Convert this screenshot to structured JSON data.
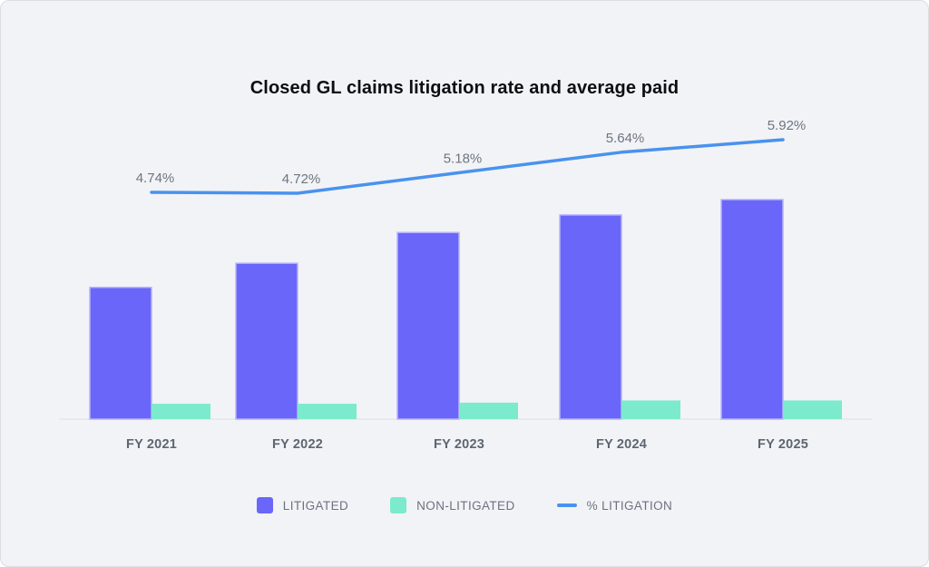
{
  "title": "Closed GL claims litigation rate and average paid",
  "legend": [
    {
      "label": "LITIGATED",
      "color": "#6A66FA",
      "marker": "square"
    },
    {
      "label": "NON-LITIGATED",
      "color": "#7CEACD",
      "marker": "square"
    },
    {
      "label": "% LITIGATION",
      "color": "#4992EE",
      "marker": "line-dash"
    }
  ],
  "chart_data": {
    "type": "bar",
    "overlay": "line",
    "title": "Closed GL claims litigation rate and average paid",
    "categories": [
      "FY 2021",
      "FY 2022",
      "FY 2023",
      "FY 2024",
      "FY 2025"
    ],
    "series": [
      {
        "name": "LITIGATED",
        "type": "bar",
        "color": "#6A66FA",
        "values": [
          60,
          71,
          85,
          93,
          100
        ],
        "value_axis": "hidden left axis, relative units (no numeric labels shown)"
      },
      {
        "name": "NON-LITIGATED",
        "type": "bar",
        "color": "#7CEACD",
        "values": [
          7,
          7,
          7.5,
          8.5,
          8.5
        ],
        "value_axis": "hidden left axis, relative units (no numeric labels shown)"
      },
      {
        "name": "% LITIGATION",
        "type": "line",
        "color": "#4992EE",
        "values": [
          4.74,
          4.72,
          5.18,
          5.64,
          5.92
        ],
        "point_labels": [
          "4.74%",
          "4.72%",
          "5.18%",
          "5.64%",
          "5.92%"
        ],
        "value_axis": "hidden right axis, percent"
      }
    ],
    "xlabel": "",
    "ylabel": "",
    "ylim": [
      0,
      100
    ],
    "line_ylim": [
      4.5,
      6.2
    ],
    "grid": false,
    "legend_position": "bottom"
  },
  "colors": {
    "background": "#F2F3F6",
    "card_border": "#DCDEE2",
    "title_text": "#0C0E10",
    "axis_line": "#E4E6E9",
    "x_label_text": "#5D6671",
    "point_label_text": "#6D7581",
    "legend_text": "#6B7280",
    "bar_litigated": "#6A66FA",
    "bar_litigated_border": "#B6B4FC",
    "bar_non_litigated": "#7CEACD",
    "line_litigation": "#4992EE"
  }
}
